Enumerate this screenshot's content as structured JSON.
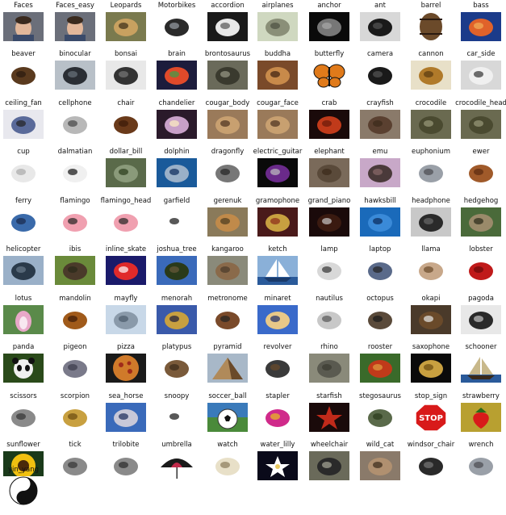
{
  "figure": {
    "categories": [
      {
        "label": "Faces",
        "icon": "face-photo"
      },
      {
        "label": "Faces_easy",
        "icon": "face-photo"
      },
      {
        "label": "Leopards",
        "icon": "leopard-photo"
      },
      {
        "label": "Motorbikes",
        "icon": "motorbike-photo"
      },
      {
        "label": "accordion",
        "icon": "accordion-photo"
      },
      {
        "label": "airplanes",
        "icon": "airplane-photo"
      },
      {
        "label": "anchor",
        "icon": "anchor-photo"
      },
      {
        "label": "ant",
        "icon": "ant-photo"
      },
      {
        "label": "barrel",
        "icon": "barrel-photo"
      },
      {
        "label": "bass",
        "icon": "bass-fish-photo"
      },
      {
        "label": "beaver",
        "icon": "beaver-photo"
      },
      {
        "label": "binocular",
        "icon": "binocular-photo"
      },
      {
        "label": "bonsai",
        "icon": "bonsai-photo"
      },
      {
        "label": "brain",
        "icon": "brain-photo"
      },
      {
        "label": "brontosaurus",
        "icon": "brontosaurus-photo"
      },
      {
        "label": "buddha",
        "icon": "buddha-photo"
      },
      {
        "label": "butterfly",
        "icon": "butterfly-photo"
      },
      {
        "label": "camera",
        "icon": "camera-photo"
      },
      {
        "label": "cannon",
        "icon": "cannon-photo"
      },
      {
        "label": "car_side",
        "icon": "car-photo"
      },
      {
        "label": "ceiling_fan",
        "icon": "ceiling-fan-photo"
      },
      {
        "label": "cellphone",
        "icon": "cellphone-photo"
      },
      {
        "label": "chair",
        "icon": "chair-photo"
      },
      {
        "label": "chandelier",
        "icon": "chandelier-photo"
      },
      {
        "label": "cougar_body",
        "icon": "cougar-photo"
      },
      {
        "label": "cougar_face",
        "icon": "cougar-photo"
      },
      {
        "label": "crab",
        "icon": "crab-photo"
      },
      {
        "label": "crayfish",
        "icon": "crayfish-photo"
      },
      {
        "label": "crocodile",
        "icon": "crocodile-photo"
      },
      {
        "label": "crocodile_head",
        "icon": "crocodile-photo"
      },
      {
        "label": "cup",
        "icon": "cup-photo"
      },
      {
        "label": "dalmatian",
        "icon": "dalmatian-photo"
      },
      {
        "label": "dollar_bill",
        "icon": "dollar-bill-photo"
      },
      {
        "label": "dolphin",
        "icon": "dolphin-photo"
      },
      {
        "label": "dragonfly",
        "icon": "dragonfly-photo"
      },
      {
        "label": "electric_guitar",
        "icon": "guitar-photo"
      },
      {
        "label": "elephant",
        "icon": "elephant-photo"
      },
      {
        "label": "emu",
        "icon": "emu-photo"
      },
      {
        "label": "euphonium",
        "icon": "euphonium-photo"
      },
      {
        "label": "ewer",
        "icon": "ewer-photo"
      },
      {
        "label": "ferry",
        "icon": "ferry-photo"
      },
      {
        "label": "flamingo",
        "icon": "flamingo-photo"
      },
      {
        "label": "flamingo_head",
        "icon": "flamingo-photo"
      },
      {
        "label": "garfield",
        "icon": "garfield-photo"
      },
      {
        "label": "gerenuk",
        "icon": "gerenuk-photo"
      },
      {
        "label": "gramophone",
        "icon": "gramophone-photo"
      },
      {
        "label": "grand_piano",
        "icon": "piano-photo"
      },
      {
        "label": "hawksbill",
        "icon": "turtle-photo"
      },
      {
        "label": "headphone",
        "icon": "headphone-photo"
      },
      {
        "label": "hedgehog",
        "icon": "hedgehog-photo"
      },
      {
        "label": "helicopter",
        "icon": "helicopter-photo"
      },
      {
        "label": "ibis",
        "icon": "ibis-photo"
      },
      {
        "label": "inline_skate",
        "icon": "skate-photo"
      },
      {
        "label": "joshua_tree",
        "icon": "tree-photo"
      },
      {
        "label": "kangaroo",
        "icon": "kangaroo-photo"
      },
      {
        "label": "ketch",
        "icon": "sailboat-photo"
      },
      {
        "label": "lamp",
        "icon": "lamp-photo"
      },
      {
        "label": "laptop",
        "icon": "laptop-photo"
      },
      {
        "label": "llama",
        "icon": "llama-photo"
      },
      {
        "label": "lobster",
        "icon": "lobster-photo"
      },
      {
        "label": "lotus",
        "icon": "lotus-photo"
      },
      {
        "label": "mandolin",
        "icon": "mandolin-photo"
      },
      {
        "label": "mayfly",
        "icon": "mayfly-photo"
      },
      {
        "label": "menorah",
        "icon": "menorah-photo"
      },
      {
        "label": "metronome",
        "icon": "metronome-photo"
      },
      {
        "label": "minaret",
        "icon": "minaret-photo"
      },
      {
        "label": "nautilus",
        "icon": "nautilus-photo"
      },
      {
        "label": "octopus",
        "icon": "octopus-photo"
      },
      {
        "label": "okapi",
        "icon": "okapi-photo"
      },
      {
        "label": "pagoda",
        "icon": "pagoda-photo"
      },
      {
        "label": "panda",
        "icon": "panda-photo"
      },
      {
        "label": "pigeon",
        "icon": "pigeon-photo"
      },
      {
        "label": "pizza",
        "icon": "pizza-photo"
      },
      {
        "label": "platypus",
        "icon": "platypus-photo"
      },
      {
        "label": "pyramid",
        "icon": "pyramid-photo"
      },
      {
        "label": "revolver",
        "icon": "revolver-photo"
      },
      {
        "label": "rhino",
        "icon": "rhino-photo"
      },
      {
        "label": "rooster",
        "icon": "rooster-photo"
      },
      {
        "label": "saxophone",
        "icon": "saxophone-photo"
      },
      {
        "label": "schooner",
        "icon": "schooner-photo"
      },
      {
        "label": "scissors",
        "icon": "scissors-photo"
      },
      {
        "label": "scorpion",
        "icon": "scorpion-photo"
      },
      {
        "label": "sea_horse",
        "icon": "seahorse-photo"
      },
      {
        "label": "snoopy",
        "icon": "snoopy-photo"
      },
      {
        "label": "soccer_ball",
        "icon": "soccer-ball-photo"
      },
      {
        "label": "stapler",
        "icon": "stapler-photo"
      },
      {
        "label": "starfish",
        "icon": "starfish-photo"
      },
      {
        "label": "stegosaurus",
        "icon": "stegosaurus-photo"
      },
      {
        "label": "stop_sign",
        "icon": "stop-sign-photo",
        "text": "STOP"
      },
      {
        "label": "strawberry",
        "icon": "strawberry-photo"
      },
      {
        "label": "sunflower",
        "icon": "sunflower-photo"
      },
      {
        "label": "tick",
        "icon": "tick-photo"
      },
      {
        "label": "trilobite",
        "icon": "trilobite-photo"
      },
      {
        "label": "umbrella",
        "icon": "umbrella-photo"
      },
      {
        "label": "watch",
        "icon": "watch-photo"
      },
      {
        "label": "water_lilly",
        "icon": "water-lily-photo"
      },
      {
        "label": "wheelchair",
        "icon": "wheelchair-photo"
      },
      {
        "label": "wild_cat",
        "icon": "wild-cat-photo"
      },
      {
        "label": "windsor_chair",
        "icon": "windsor-chair-photo"
      },
      {
        "label": "wrench",
        "icon": "wrench-photo"
      },
      {
        "label": "yin_yang",
        "icon": "yin-yang-photo"
      }
    ]
  }
}
